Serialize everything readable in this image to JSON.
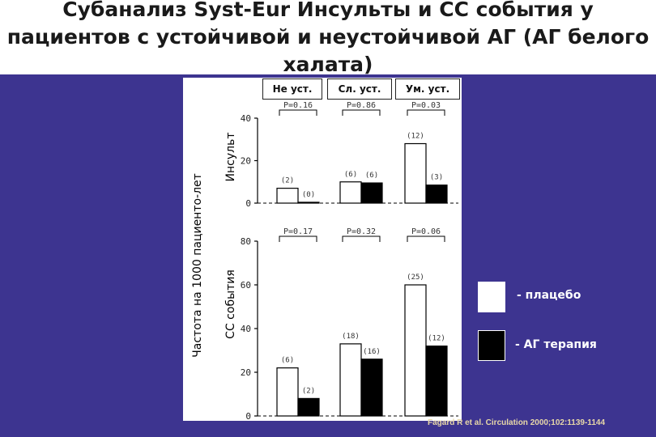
{
  "title": "Субанализ Syst-Eur Инсульты и СС события у пациентов с устойчивой и неустойчивой АГ (АГ белого халата)",
  "groups": [
    "Не уст.",
    "Сл. уст.",
    "Ум. уст."
  ],
  "yaxis_common": "Частота на 1000 пациенто-лет",
  "legend": {
    "placebo": "- плацебо",
    "treatment": "- АГ терапия",
    "placebo_color": "#ffffff",
    "treatment_color": "#000000"
  },
  "citation": "Fagard R et al. Circulation 2000;102:1139-1144",
  "chart_data": [
    {
      "type": "bar",
      "ylabel": "Инсульт",
      "ylim": [
        0,
        40
      ],
      "yticks": [
        0,
        20,
        40
      ],
      "categories": [
        "Не уст.",
        "Сл. уст.",
        "Ум. уст."
      ],
      "p_values": [
        "P=0.16",
        "P=0.86",
        "P=0.03"
      ],
      "series": [
        {
          "name": "плацебо",
          "color": "#ffffff",
          "values": [
            7,
            10,
            28
          ],
          "counts": [
            "(2)",
            "(6)",
            "(12)"
          ]
        },
        {
          "name": "АГ терапия",
          "color": "#000000",
          "values": [
            0.4,
            9.5,
            8.5
          ],
          "counts": [
            "(0)",
            "(6)",
            "(3)"
          ]
        }
      ]
    },
    {
      "type": "bar",
      "ylabel": "СС события",
      "ylim": [
        0,
        80
      ],
      "yticks": [
        0,
        20,
        40,
        60,
        80
      ],
      "categories": [
        "Не уст.",
        "Сл. уст.",
        "Ум. уст."
      ],
      "p_values": [
        "P=0.17",
        "P=0.32",
        "P=0.06"
      ],
      "series": [
        {
          "name": "плацебо",
          "color": "#ffffff",
          "values": [
            22,
            33,
            60
          ],
          "counts": [
            "(6)",
            "(18)",
            "(25)"
          ]
        },
        {
          "name": "АГ терапия",
          "color": "#000000",
          "values": [
            8,
            26,
            32
          ],
          "counts": [
            "(2)",
            "(16)",
            "(12)"
          ]
        }
      ]
    }
  ]
}
